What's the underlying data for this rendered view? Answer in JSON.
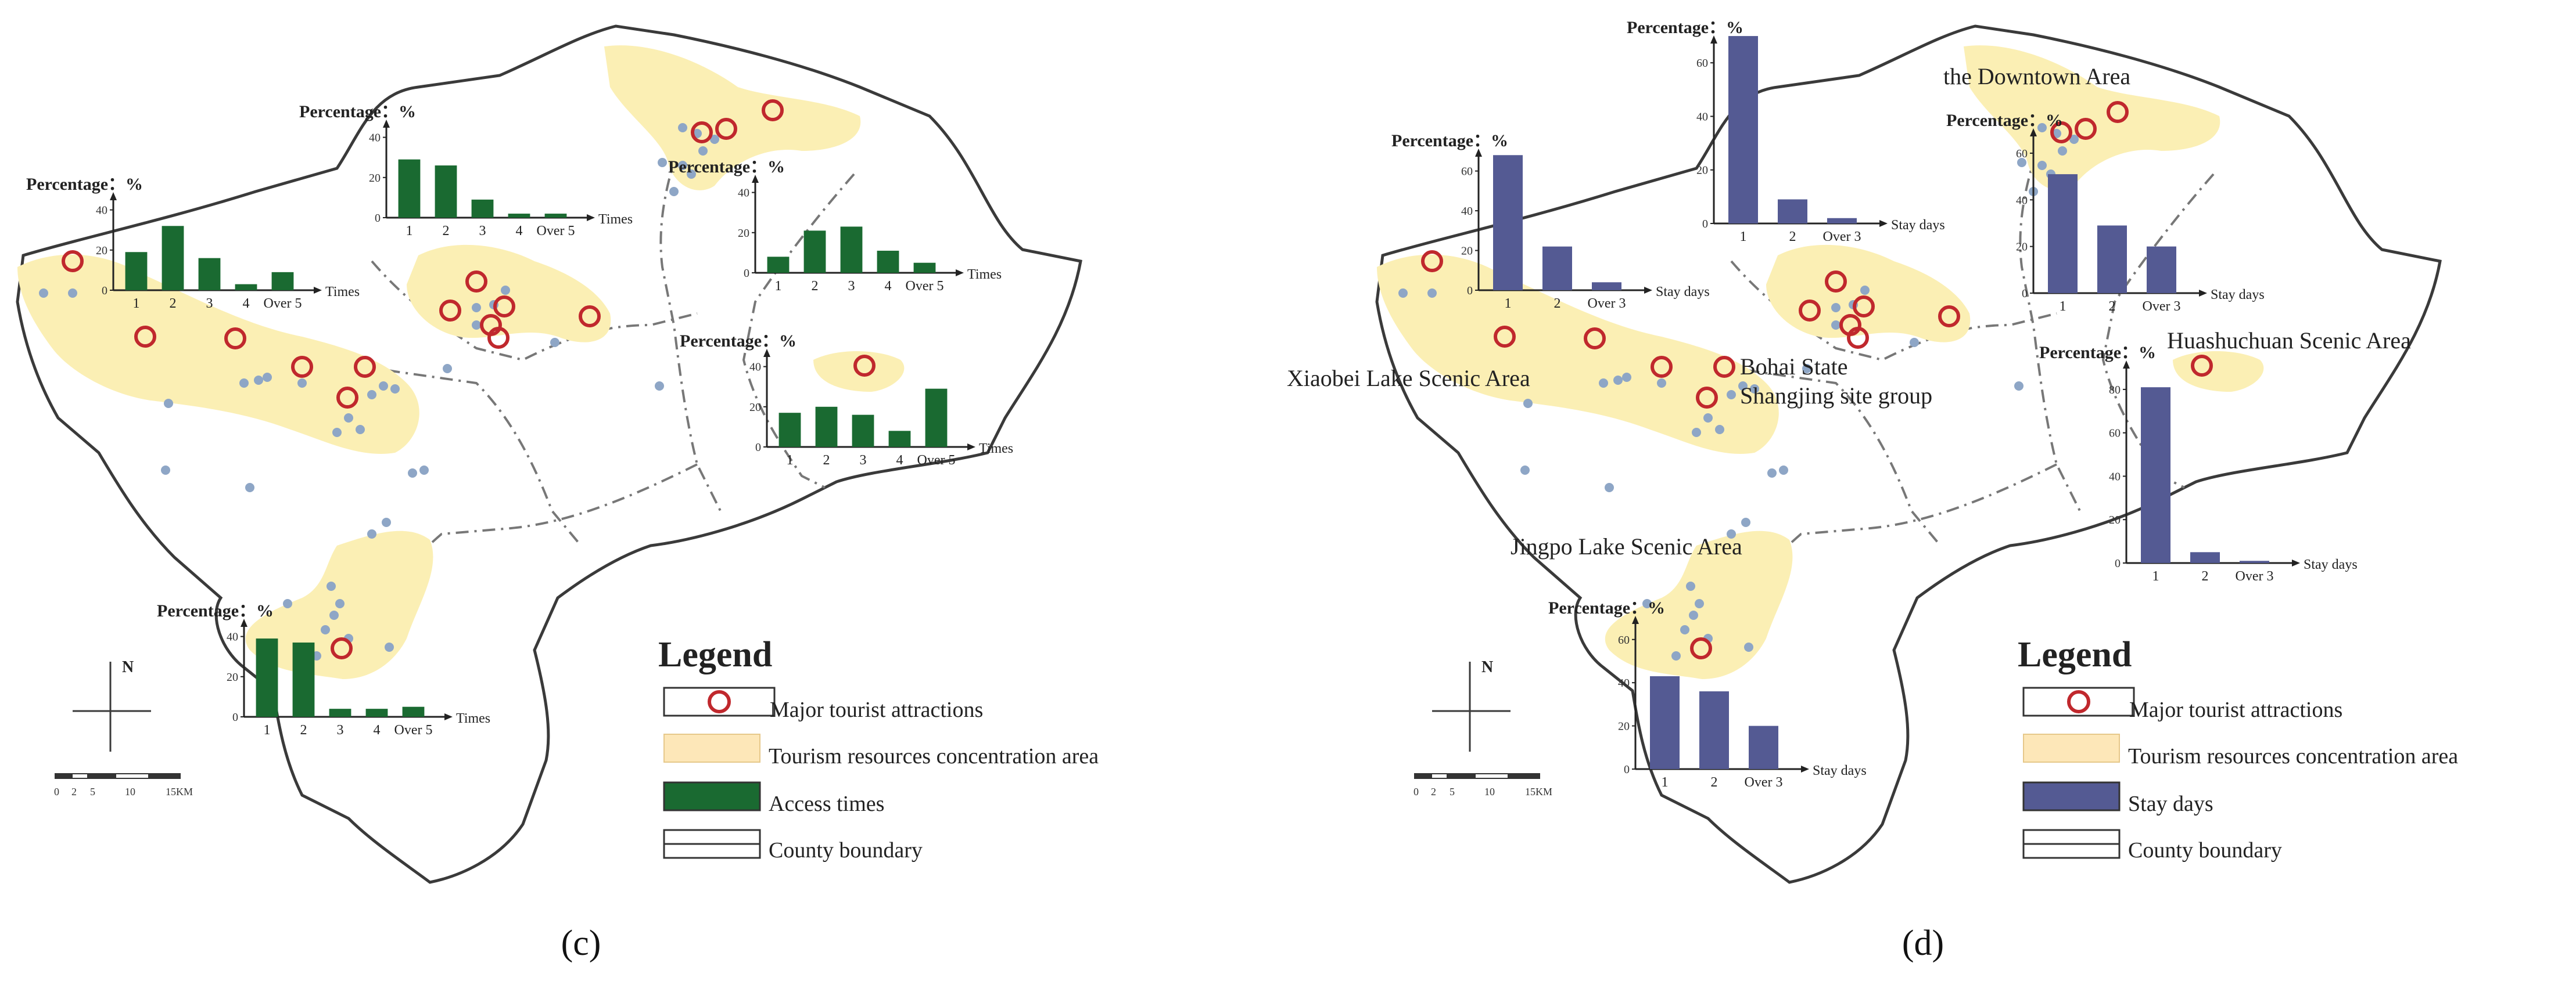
{
  "colors": {
    "outline": "#3a3a3a",
    "county_dash": "#777777",
    "concentration_area": "#fbefb4",
    "attraction_ring": "#c0282d",
    "point": "#8ea6c6",
    "bar_c": "#1a6a31",
    "bar_d": "#545a93",
    "legend_area": "#fde7b8"
  },
  "axis_title": "Percentage：%",
  "legend": {
    "title": "Legend",
    "major_attractions": "Major tourist attractions",
    "concentration_area": "Tourism resources concentration area",
    "county_boundary": "County boundary",
    "access_times": "Access times",
    "stay_days": "Stay days"
  },
  "north_label": "N",
  "scale_labels": [
    "0",
    "2",
    "5",
    "10",
    "15KM"
  ],
  "panel_labels": {
    "c": "(c)",
    "d": "(d)"
  },
  "place_names": {
    "downtown": "the Downtown Area",
    "xiaobei": "Xiaobei Lake Scenic Area",
    "bohai_line1": "Bohai State",
    "bohai_line2": "Shangjing site group",
    "huashuchuan": "Huashuchuan Scenic Area",
    "jingpo": "Jingpo Lake Scenic Area"
  },
  "chart_data": [
    {
      "panel": "c",
      "id": "c-west",
      "type": "bar",
      "xlabel": "Times",
      "categories": [
        "1",
        "2",
        "3",
        "4",
        "Over 5"
      ],
      "values": [
        19,
        32,
        16,
        3,
        9
      ],
      "ylim": [
        0,
        40
      ],
      "yticks": [
        "0",
        "20",
        "40"
      ]
    },
    {
      "panel": "c",
      "id": "c-north",
      "type": "bar",
      "xlabel": "Times",
      "categories": [
        "1",
        "2",
        "3",
        "4",
        "Over 5"
      ],
      "values": [
        29,
        26,
        9,
        2,
        2
      ],
      "ylim": [
        0,
        40
      ],
      "yticks": [
        "0",
        "20",
        "40"
      ]
    },
    {
      "panel": "c",
      "id": "c-downtown",
      "type": "bar",
      "xlabel": "Times",
      "categories": [
        "1",
        "2",
        "3",
        "4",
        "Over 5"
      ],
      "values": [
        8,
        21,
        23,
        11,
        5
      ],
      "ylim": [
        0,
        40
      ],
      "yticks": [
        "0",
        "20",
        "40"
      ]
    },
    {
      "panel": "c",
      "id": "c-east",
      "type": "bar",
      "xlabel": "Times",
      "categories": [
        "1",
        "2",
        "3",
        "4",
        "Over 5"
      ],
      "values": [
        17,
        20,
        16,
        8,
        29
      ],
      "ylim": [
        0,
        40
      ],
      "yticks": [
        "0",
        "20",
        "40"
      ]
    },
    {
      "panel": "c",
      "id": "c-south",
      "type": "bar",
      "xlabel": "Times",
      "categories": [
        "1",
        "2",
        "3",
        "4",
        "Over 5"
      ],
      "values": [
        39,
        37,
        4,
        4,
        5
      ],
      "ylim": [
        0,
        40
      ],
      "yticks": [
        "0",
        "20",
        "40"
      ]
    },
    {
      "panel": "d",
      "id": "d-west",
      "type": "bar",
      "xlabel": "Stay days",
      "categories": [
        "1",
        "2",
        "Over 3"
      ],
      "values": [
        68,
        22,
        4
      ],
      "ylim": [
        0,
        60
      ],
      "yticks": [
        "0",
        "20",
        "40",
        "60"
      ]
    },
    {
      "panel": "d",
      "id": "d-north",
      "type": "bar",
      "xlabel": "Stay days",
      "categories": [
        "1",
        "2",
        "Over 3"
      ],
      "values": [
        70,
        9,
        2
      ],
      "ylim": [
        0,
        60
      ],
      "yticks": [
        "0",
        "20",
        "40",
        "60"
      ]
    },
    {
      "panel": "d",
      "id": "d-downtown",
      "type": "bar",
      "xlabel": "Stay days",
      "categories": [
        "1",
        "2",
        "Over 3"
      ],
      "values": [
        51,
        29,
        20
      ],
      "ylim": [
        0,
        60
      ],
      "yticks": [
        "0",
        "20",
        "40",
        "60"
      ]
    },
    {
      "panel": "d",
      "id": "d-east",
      "type": "bar",
      "xlabel": "Stay days",
      "categories": [
        "1",
        "2",
        "Over 3"
      ],
      "values": [
        81,
        5,
        1
      ],
      "ylim": [
        0,
        80
      ],
      "yticks": [
        "0",
        "20",
        "40",
        "60",
        "80"
      ]
    },
    {
      "panel": "d",
      "id": "d-south",
      "type": "bar",
      "xlabel": "Stay days",
      "categories": [
        "1",
        "2",
        "Over 3"
      ],
      "values": [
        43,
        36,
        20
      ],
      "ylim": [
        0,
        60
      ],
      "yticks": [
        "0",
        "20",
        "40",
        "60"
      ]
    }
  ]
}
